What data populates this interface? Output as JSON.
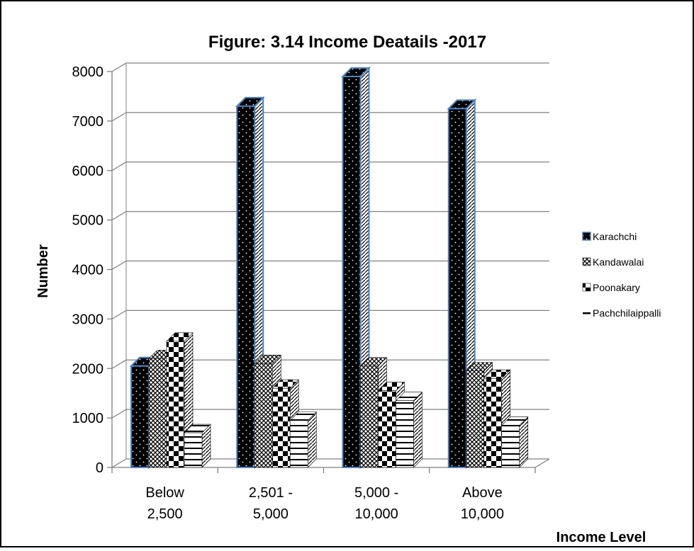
{
  "chart_data": {
    "type": "bar",
    "title": "Figure: 3.14 Income Deatails -2017",
    "xlabel": "Income  Level",
    "ylabel": "Number",
    "ylim": [
      0,
      8000
    ],
    "yticks": [
      "0",
      "1000",
      "2000",
      "3000",
      "4000",
      "5000",
      "6000",
      "7000",
      "8000"
    ],
    "categories": [
      "Below 2,500",
      "2,501 - 5,000",
      "5,000 - 10,000",
      "Above 10,000"
    ],
    "category_lines": [
      [
        "Below",
        "2,500"
      ],
      [
        "2,501 -",
        "5,000"
      ],
      [
        "5,000 -",
        "10,000"
      ],
      [
        "Above",
        "10,000"
      ]
    ],
    "series": [
      {
        "name": "Karachchi",
        "values": [
          2050,
          7300,
          7900,
          7250
        ],
        "pattern": "dots"
      },
      {
        "name": "Kandawalai",
        "values": [
          2200,
          2100,
          2050,
          1950
        ],
        "pattern": "cross"
      },
      {
        "name": "Poonakary",
        "values": [
          2550,
          1600,
          1550,
          1800
        ],
        "pattern": "checker"
      },
      {
        "name": "Pachchilaippalli",
        "values": [
          700,
          950,
          1350,
          850
        ],
        "pattern": "hlines"
      }
    ],
    "grid": true,
    "legend_position": "right",
    "colors": {
      "outline_highlight": "#4f81bd",
      "grid": "#808080"
    }
  }
}
